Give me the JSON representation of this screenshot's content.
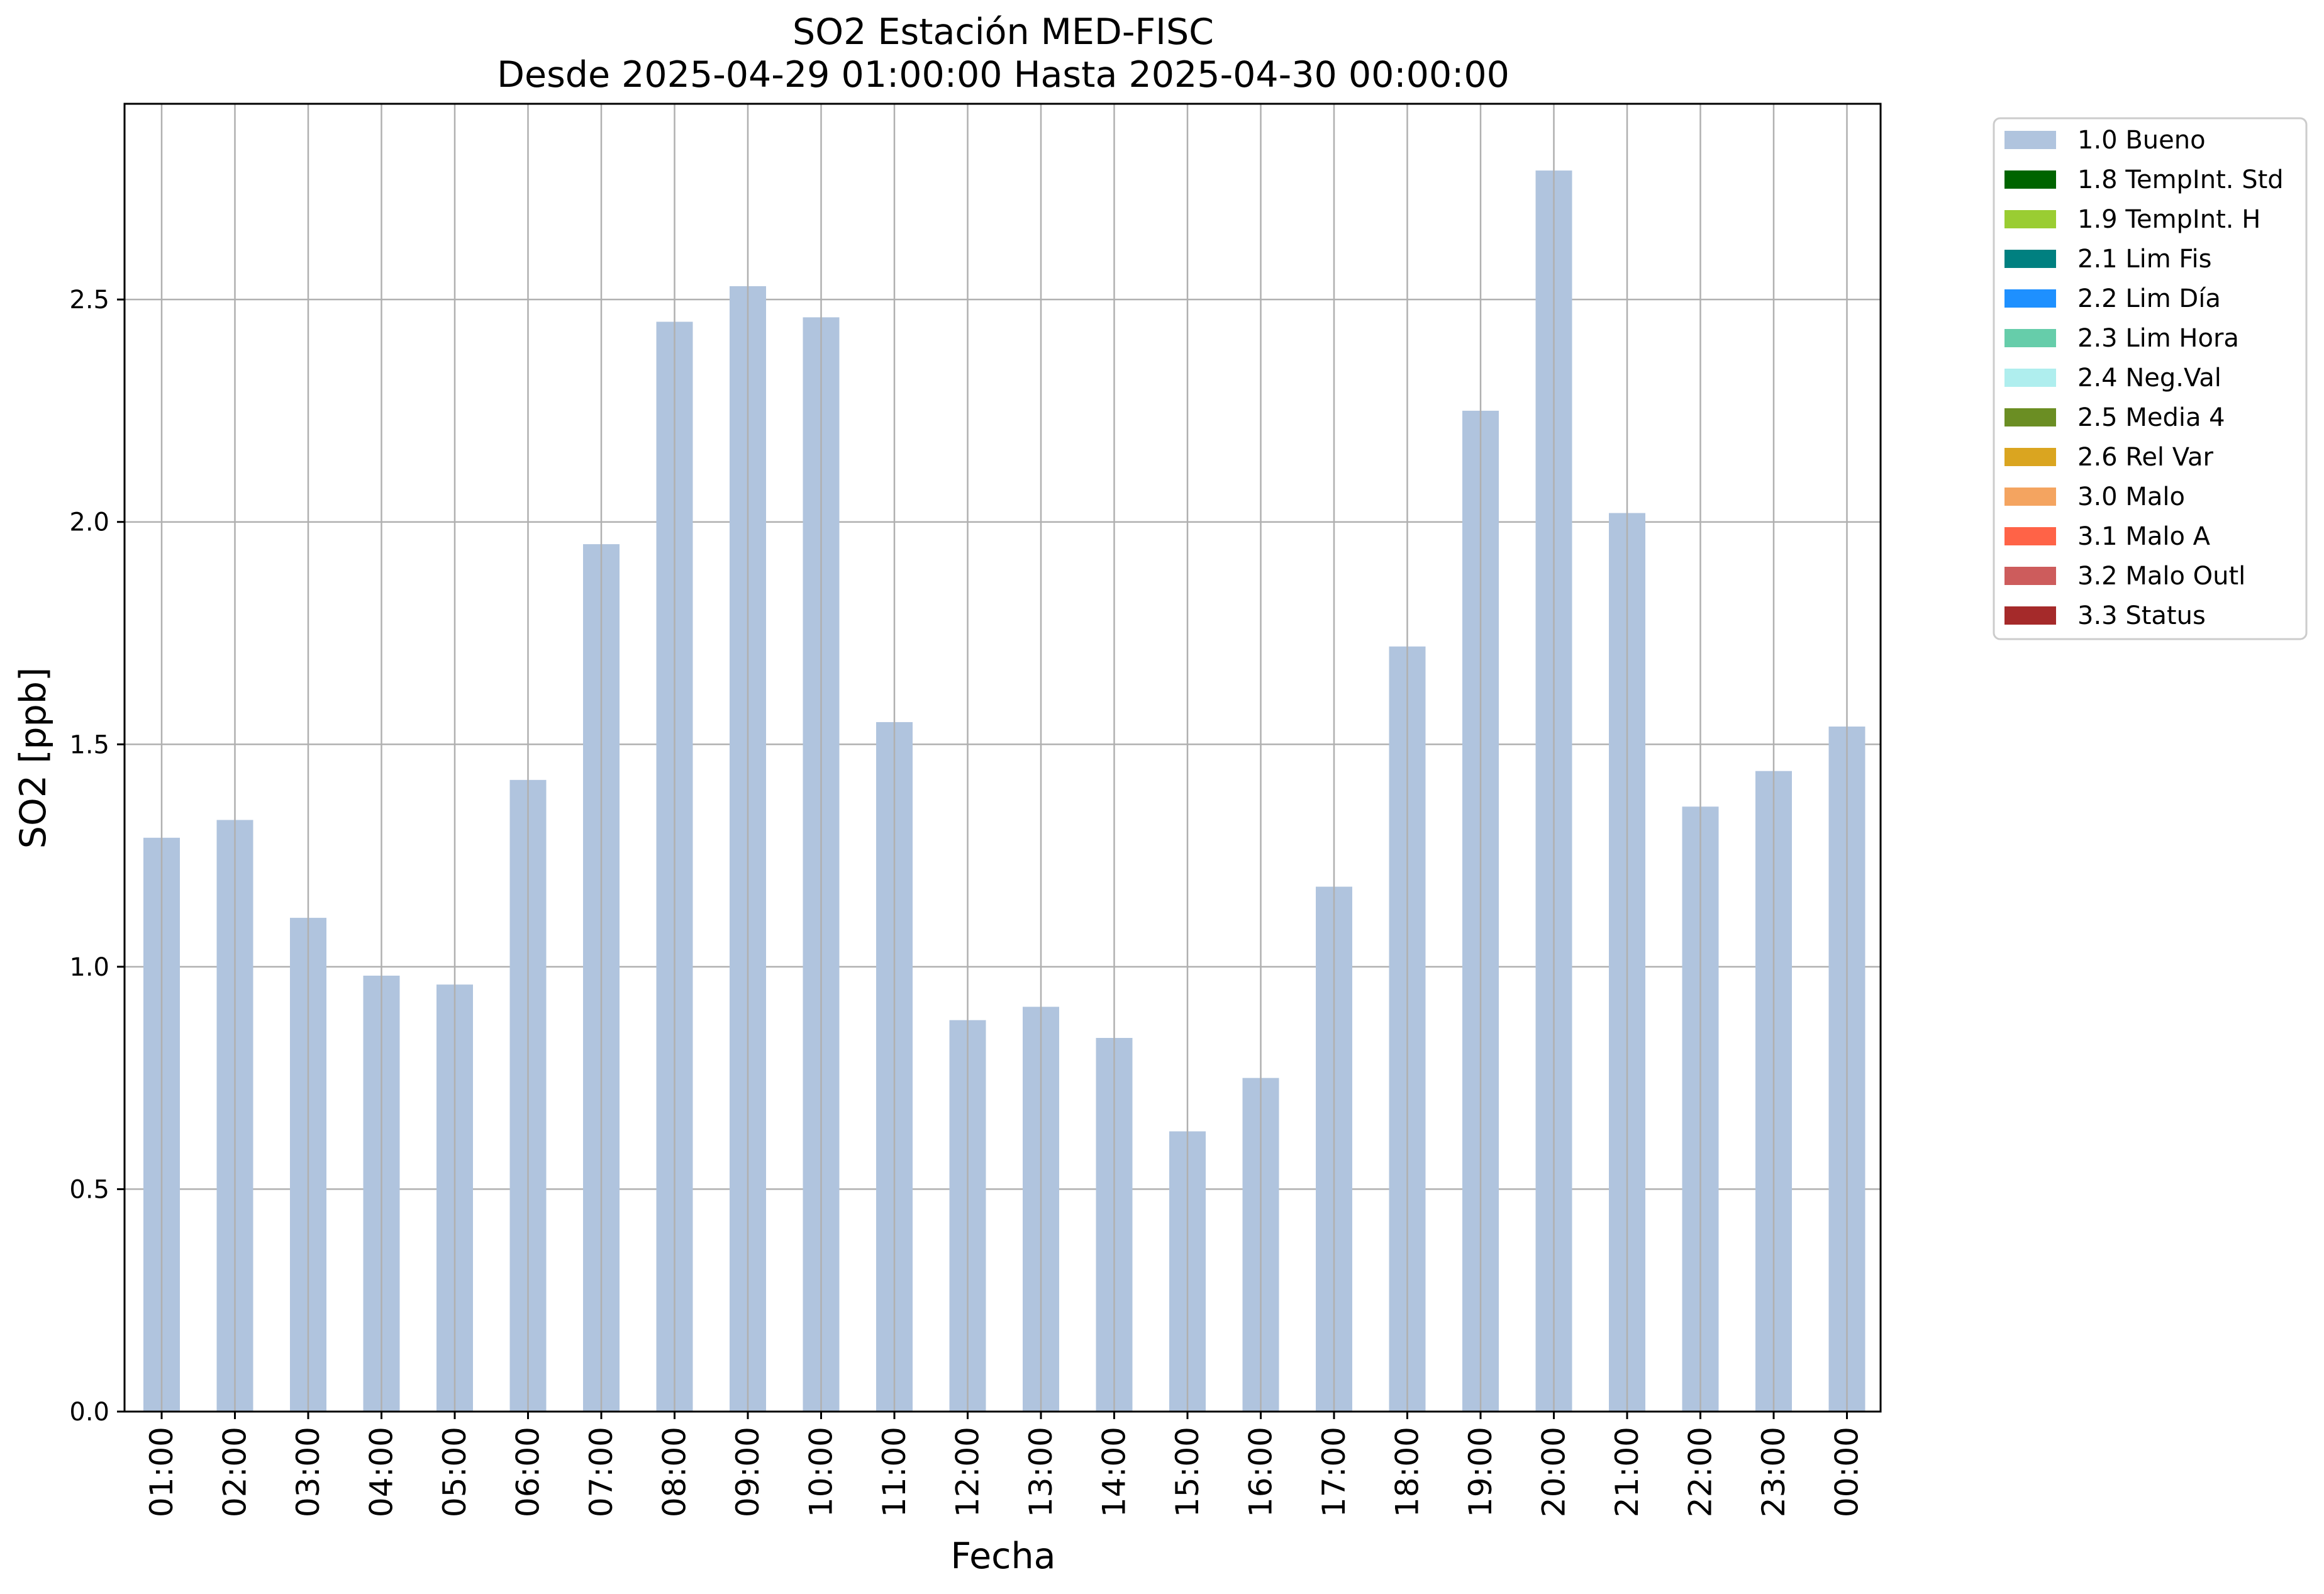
{
  "chart_data": {
    "type": "bar",
    "title": "SO2 Estación MED-FISC",
    "subtitle": "Desde 2025-04-29 01:00:00 Hasta 2025-04-30 00:00:00",
    "xlabel": "Fecha",
    "ylabel": "SO2 [ppb]",
    "ylim": [
      0,
      2.94
    ],
    "yticks": [
      0.0,
      0.5,
      1.0,
      1.5,
      2.0,
      2.5
    ],
    "ytick_labels": [
      "0.0",
      "0.5",
      "1.0",
      "1.5",
      "2.0",
      "2.5"
    ],
    "grid": true,
    "legend_position": "outside-top-right",
    "categories": [
      "01:00",
      "02:00",
      "03:00",
      "04:00",
      "05:00",
      "06:00",
      "07:00",
      "08:00",
      "09:00",
      "10:00",
      "11:00",
      "12:00",
      "13:00",
      "14:00",
      "15:00",
      "16:00",
      "17:00",
      "18:00",
      "19:00",
      "20:00",
      "21:00",
      "22:00",
      "23:00",
      "00:00"
    ],
    "series": [
      {
        "name": "1.0 Bueno",
        "color": "#b0c4de",
        "values": [
          1.29,
          1.33,
          1.11,
          0.98,
          0.96,
          1.42,
          1.95,
          2.45,
          2.53,
          2.46,
          1.55,
          0.88,
          0.91,
          0.84,
          0.63,
          0.75,
          1.18,
          1.72,
          2.25,
          2.79,
          2.02,
          1.36,
          1.44,
          1.54
        ]
      }
    ],
    "legend": [
      {
        "label": "1.0 Bueno",
        "color": "#b0c4de"
      },
      {
        "label": "1.8 TempInt. Std",
        "color": "#006400"
      },
      {
        "label": "1.9 TempInt. H",
        "color": "#9acd32"
      },
      {
        "label": "2.1 Lim Fis",
        "color": "#008080"
      },
      {
        "label": "2.2 Lim Día",
        "color": "#1e90ff"
      },
      {
        "label": "2.3 Lim Hora",
        "color": "#66cdaa"
      },
      {
        "label": "2.4 Neg.Val",
        "color": "#afeeee"
      },
      {
        "label": "2.5 Media 4",
        "color": "#6b8e23"
      },
      {
        "label": "2.6 Rel Var",
        "color": "#daa520"
      },
      {
        "label": "3.0 Malo",
        "color": "#f4a460"
      },
      {
        "label": "3.1 Malo A",
        "color": "#ff6347"
      },
      {
        "label": "3.2 Malo Outl",
        "color": "#cd5c5c"
      },
      {
        "label": "3.3 Status",
        "color": "#a52a2a"
      }
    ]
  }
}
